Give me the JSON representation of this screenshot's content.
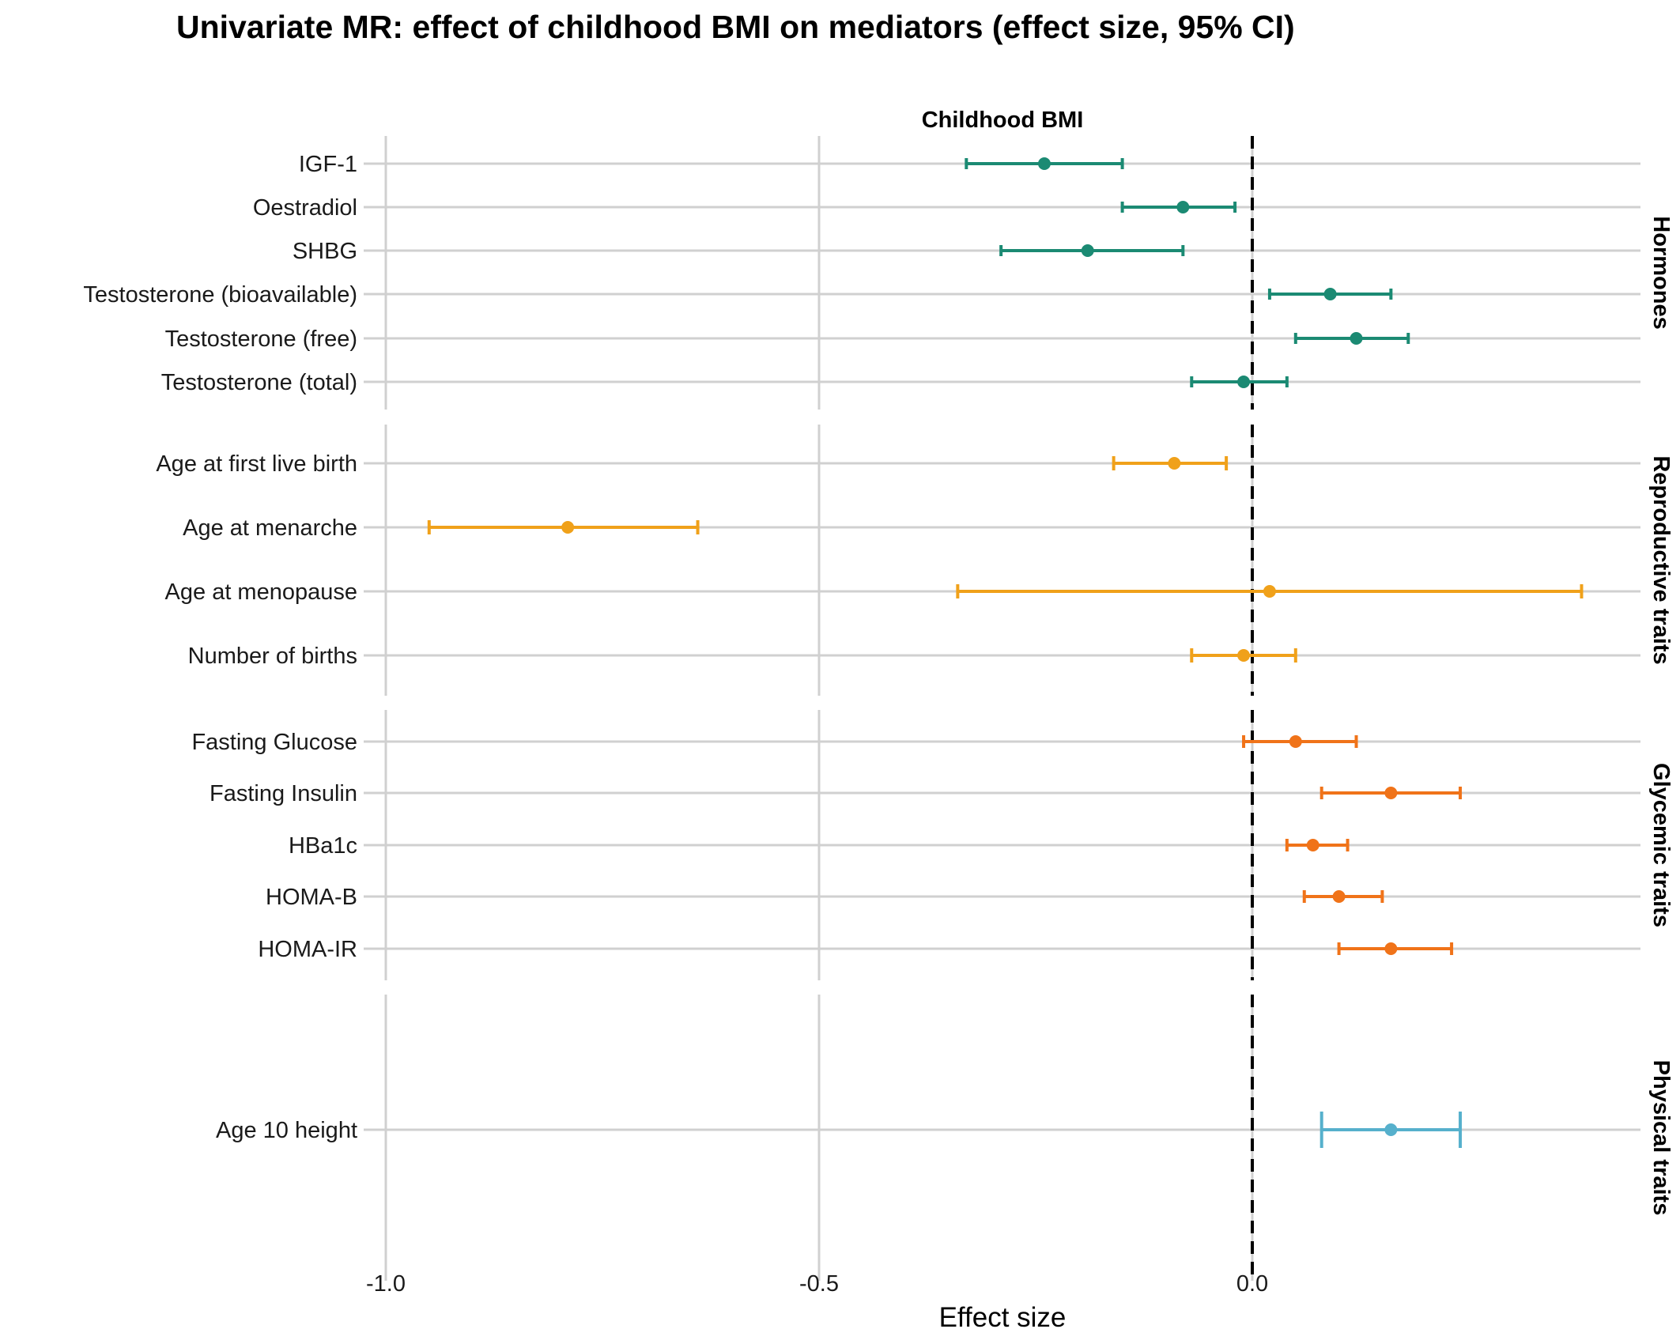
{
  "chart_data": {
    "type": "forest",
    "title": "Univariate MR: effect of childhood BMI on mediators (effect size, 95% CI)",
    "strip_label": "Childhood BMI",
    "xlabel": "Effect size",
    "xlim": [
      -1.0,
      0.45
    ],
    "x_ticks": [
      -1.0,
      -0.5,
      0.0
    ],
    "x_tick_labels": [
      "-1.0",
      "-0.5",
      "0.0"
    ],
    "reference_line": 0.0,
    "grid": true,
    "groups": [
      {
        "name": "Hormones",
        "color": "#1b8a73",
        "rows": [
          {
            "label": "IGF-1",
            "estimate": -0.24,
            "lower": -0.33,
            "upper": -0.15
          },
          {
            "label": "Oestradiol",
            "estimate": -0.08,
            "lower": -0.15,
            "upper": -0.02
          },
          {
            "label": "SHBG",
            "estimate": -0.19,
            "lower": -0.29,
            "upper": -0.08
          },
          {
            "label": "Testosterone (bioavailable)",
            "estimate": 0.09,
            "lower": 0.02,
            "upper": 0.16
          },
          {
            "label": "Testosterone (free)",
            "estimate": 0.12,
            "lower": 0.05,
            "upper": 0.18
          },
          {
            "label": "Testosterone (total)",
            "estimate": -0.01,
            "lower": -0.07,
            "upper": 0.04
          }
        ]
      },
      {
        "name": "Reproductive traits",
        "color": "#f0a11a",
        "rows": [
          {
            "label": "Age at first live birth",
            "estimate": -0.09,
            "lower": -0.16,
            "upper": -0.03
          },
          {
            "label": "Age at menarche",
            "estimate": -0.79,
            "lower": -0.95,
            "upper": -0.64
          },
          {
            "label": "Age at menopause",
            "estimate": 0.02,
            "lower": -0.34,
            "upper": 0.38
          },
          {
            "label": "Number of births",
            "estimate": -0.01,
            "lower": -0.07,
            "upper": 0.05
          }
        ]
      },
      {
        "name": "Glycemic traits",
        "color": "#f07319",
        "rows": [
          {
            "label": "Fasting Glucose",
            "estimate": 0.05,
            "lower": -0.01,
            "upper": 0.12
          },
          {
            "label": "Fasting Insulin",
            "estimate": 0.16,
            "lower": 0.08,
            "upper": 0.24
          },
          {
            "label": "HBa1c",
            "estimate": 0.07,
            "lower": 0.04,
            "upper": 0.11
          },
          {
            "label": "HOMA-B",
            "estimate": 0.1,
            "lower": 0.06,
            "upper": 0.15
          },
          {
            "label": "HOMA-IR",
            "estimate": 0.16,
            "lower": 0.1,
            "upper": 0.23
          }
        ]
      },
      {
        "name": "Physical traits",
        "color": "#56b0cc",
        "rows": [
          {
            "label": "Age 10 height",
            "estimate": 0.16,
            "lower": 0.08,
            "upper": 0.24
          }
        ]
      }
    ]
  }
}
